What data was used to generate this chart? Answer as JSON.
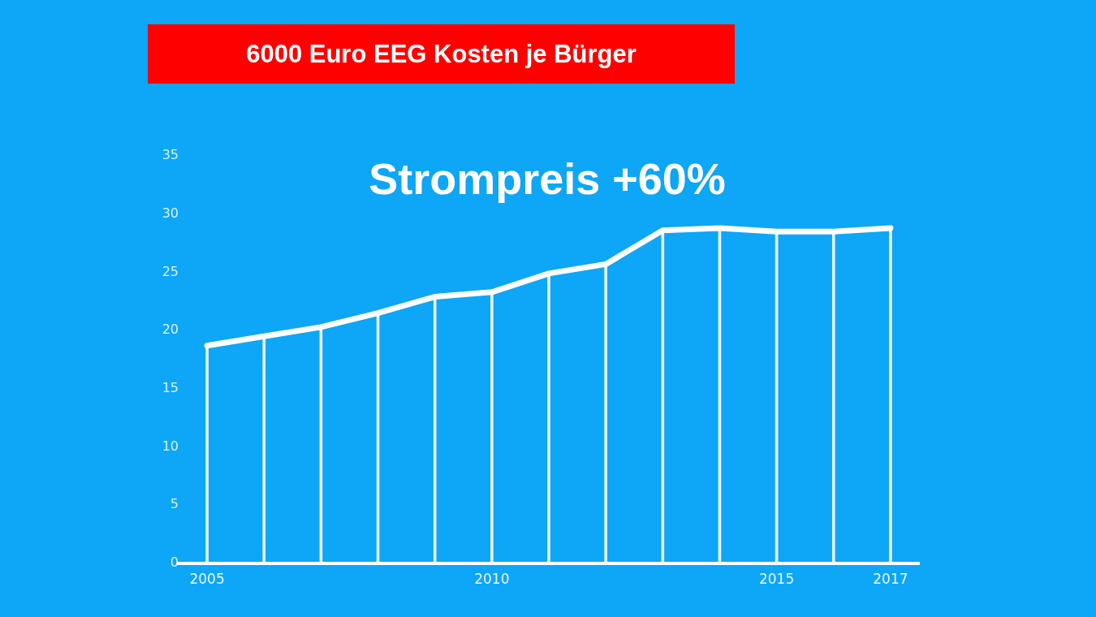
{
  "chart_data": {
    "type": "line",
    "title": "6000 Euro EEG Kosten je Bürger",
    "subtitle": "Strompreis +60%",
    "x": [
      2005,
      2006,
      2007,
      2008,
      2009,
      2010,
      2011,
      2012,
      2013,
      2014,
      2015,
      2016,
      2017
    ],
    "series": [
      {
        "color": "#ffffff",
        "values": [
          18.7,
          19.5,
          20.3,
          21.5,
          22.9,
          23.3,
          24.9,
          25.7,
          28.6,
          28.8,
          28.5,
          28.5,
          28.8
        ]
      },
      {
        "type": "bar",
        "color": "#e6f5fe",
        "values": [
          18.7,
          19.5,
          20.3,
          21.5,
          22.9,
          23.3,
          24.9,
          25.7,
          28.6,
          28.8,
          28.5,
          28.5,
          28.8
        ]
      }
    ],
    "xlim": [
      2004.5,
      2017.5
    ],
    "xticks": [
      2005,
      2010,
      2015,
      2017
    ],
    "ylim": [
      0,
      35
    ],
    "yticks": [
      0,
      5,
      10,
      15,
      20,
      25,
      30,
      35
    ],
    "grid": false,
    "legend": false,
    "marker": "none",
    "line_style": "solid"
  }
}
